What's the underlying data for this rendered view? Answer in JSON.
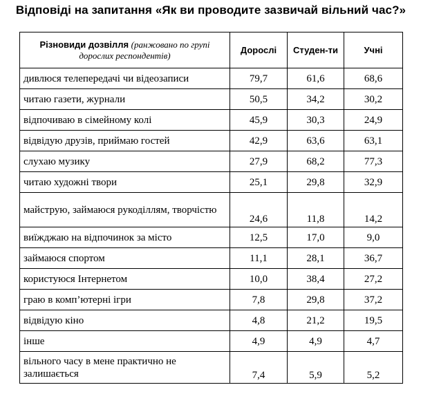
{
  "title": "Відповіді на запитання «Як ви проводите зазвичай вільний час?»",
  "header": {
    "category_bold": "Різновиди дозвілля",
    "category_italic": "(ранжовано по групі дорослих респондентів)",
    "col_adults": "Дорослі",
    "col_students": "Студен-ти",
    "col_pupils": "Учні"
  },
  "rows": [
    {
      "label": "дивлюся телепередачі чи відеозаписи",
      "adults": "79,7",
      "students": "61,6",
      "pupils": "68,6"
    },
    {
      "label": "читаю газети, журнали",
      "adults": "50,5",
      "students": "34,2",
      "pupils": "30,2"
    },
    {
      "label": "відпочиваю в сімейному колі",
      "adults": "45,9",
      "students": "30,3",
      "pupils": "24,9"
    },
    {
      "label": "відвідую друзів, приймаю гостей",
      "adults": "42,9",
      "students": "63,6",
      "pupils": "63,1"
    },
    {
      "label": "слухаю музику",
      "adults": "27,9",
      "students": "68,2",
      "pupils": "77,3"
    },
    {
      "label": "читаю художні твори",
      "adults": "25,1",
      "students": "29,8",
      "pupils": "32,9"
    },
    {
      "label": "майструю, займаюся рукоділлям, творчістю",
      "adults": "24,6",
      "students": "11,8",
      "pupils": "14,2"
    },
    {
      "label": "виїжджаю на відпочинок за місто",
      "adults": "12,5",
      "students": "17,0",
      "pupils": "9,0"
    },
    {
      "label": "займаюся спортом",
      "adults": "11,1",
      "students": "28,1",
      "pupils": "36,7"
    },
    {
      "label": "користуюся Інтернетом",
      "adults": "10,0",
      "students": "38,4",
      "pupils": "27,2"
    },
    {
      "label": "граю в комп’ютерні ігри",
      "adults": "7,8",
      "students": "29,8",
      "pupils": "37,2"
    },
    {
      "label": "відвідую кіно",
      "adults": "4,8",
      "students": "21,2",
      "pupils": "19,5"
    },
    {
      "label": "інше",
      "adults": "4,9",
      "students": "4,9",
      "pupils": "4,7"
    },
    {
      "label": "вільного часу в мене практично не залишається",
      "adults": "7,4",
      "students": "5,9",
      "pupils": "5,2"
    }
  ]
}
